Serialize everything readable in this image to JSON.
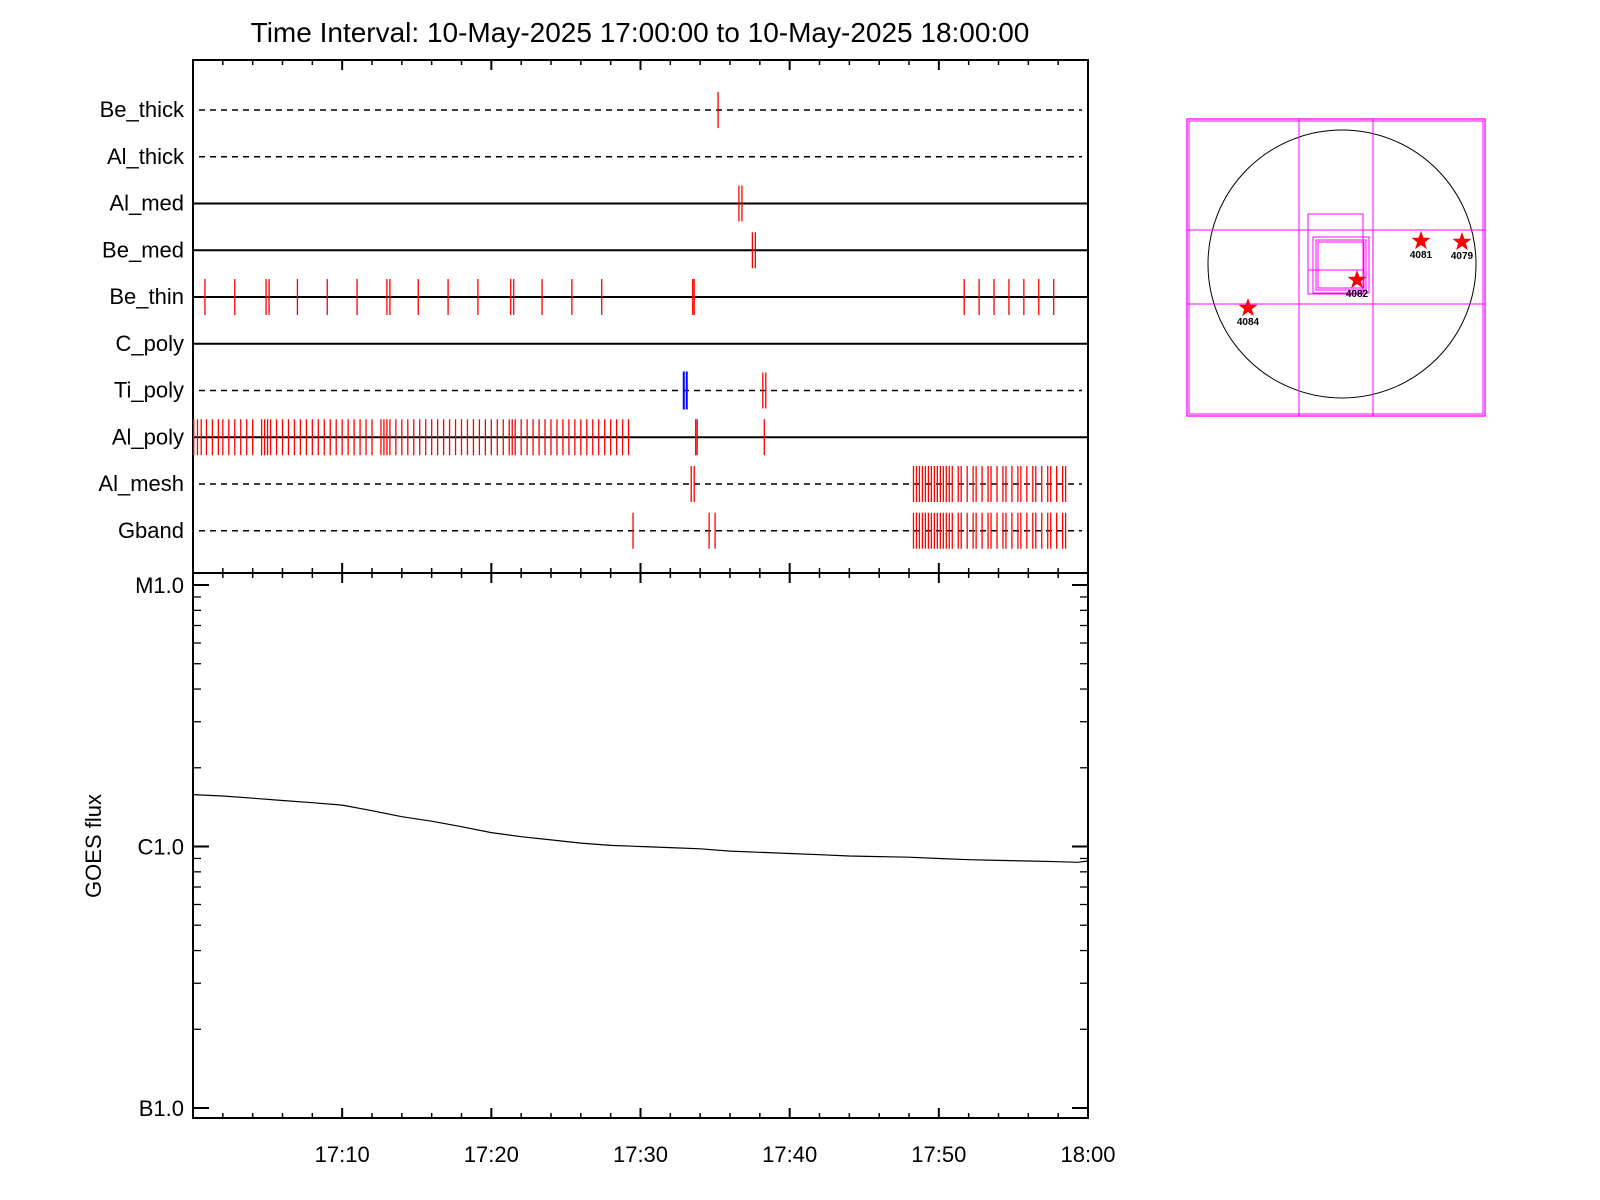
{
  "chart_data": [
    {
      "type": "timeline",
      "title": "Time Interval: 10-May-2025 17:00:00 to 10-May-2025 18:00:00",
      "x_range": [
        "17:00",
        "18:00"
      ],
      "rows": [
        {
          "label": "Be_thick",
          "line": "dashed",
          "red": [
            35.2
          ],
          "blue": []
        },
        {
          "label": "Al_thick",
          "line": "dashed",
          "red": [],
          "blue": []
        },
        {
          "label": "Al_med",
          "line": "solid",
          "red": [
            36.6,
            36.8
          ],
          "blue": []
        },
        {
          "label": "Be_med",
          "line": "solid",
          "red": [
            37.5,
            37.7
          ],
          "blue": []
        },
        {
          "label": "Be_thin",
          "line": "solid",
          "red": [
            0.8,
            2.8,
            4.9,
            5.1,
            7.0,
            9.0,
            11.0,
            13.0,
            13.2,
            15.1,
            17.1,
            19.1,
            21.3,
            21.5,
            23.4,
            25.4,
            27.4,
            33.5,
            33.6,
            51.7,
            52.7,
            53.7,
            54.7,
            55.7,
            56.7,
            57.7
          ],
          "blue": []
        },
        {
          "label": "C_poly",
          "line": "solid",
          "red": [],
          "blue": []
        },
        {
          "label": "Ti_poly",
          "line": "dashed",
          "red": [
            38.2,
            38.4
          ],
          "blue": [
            32.9,
            33.1
          ]
        },
        {
          "label": "Al_poly",
          "line": "solid",
          "red": [
            0.05,
            0.3,
            0.55,
            0.9,
            1.3,
            1.7,
            2.0,
            2.4,
            2.8,
            3.2,
            3.6,
            4.0,
            4.6,
            4.8,
            5.0,
            5.2,
            5.6,
            6.0,
            6.4,
            6.8,
            7.2,
            7.6,
            8.0,
            8.4,
            8.8,
            9.2,
            9.6,
            10.0,
            10.4,
            10.8,
            11.2,
            11.6,
            12.0,
            12.6,
            12.8,
            13.0,
            13.2,
            13.6,
            14.0,
            14.4,
            14.8,
            15.2,
            15.6,
            16.0,
            16.4,
            16.8,
            17.2,
            17.6,
            18.0,
            18.4,
            18.8,
            19.2,
            19.6,
            20.0,
            20.4,
            20.8,
            21.2,
            21.4,
            21.6,
            22.0,
            22.4,
            22.8,
            23.2,
            23.6,
            24.0,
            24.4,
            24.8,
            25.2,
            25.6,
            26.0,
            26.4,
            26.8,
            27.2,
            27.6,
            28.0,
            28.4,
            28.8,
            29.2,
            33.7,
            33.8,
            38.3
          ],
          "blue": []
        },
        {
          "label": "Al_mesh",
          "line": "dashed",
          "red": [
            33.4,
            33.6,
            48.3,
            48.5,
            48.7,
            48.9,
            49.1,
            49.3,
            49.5,
            49.7,
            49.9,
            50.1,
            50.3,
            50.5,
            50.7,
            50.9,
            51.3,
            51.5,
            51.9,
            52.3,
            52.5,
            52.9,
            53.3,
            53.5,
            53.9,
            54.3,
            54.5,
            54.9,
            55.3,
            55.5,
            55.9,
            56.3,
            56.5,
            56.9,
            57.3,
            57.5,
            57.9,
            58.3,
            58.5
          ],
          "blue": []
        },
        {
          "label": "Gband",
          "line": "dashed",
          "red": [
            29.5,
            34.6,
            35.0,
            48.3,
            48.5,
            48.7,
            48.9,
            49.1,
            49.3,
            49.5,
            49.7,
            49.9,
            50.1,
            50.3,
            50.5,
            50.7,
            50.9,
            51.3,
            51.5,
            51.9,
            52.3,
            52.5,
            52.9,
            53.3,
            53.5,
            53.9,
            54.3,
            54.5,
            54.9,
            55.3,
            55.5,
            55.9,
            56.3,
            56.5,
            56.9,
            57.3,
            57.5,
            57.9,
            58.3,
            58.5
          ],
          "blue": []
        }
      ]
    },
    {
      "type": "line",
      "ylabel": "GOES flux",
      "yscale": "log",
      "ylim": [
        1e-07,
        1e-05
      ],
      "y_ticks": [
        {
          "label": "M1.0",
          "value": 1e-05
        },
        {
          "label": "C1.0",
          "value": 1e-06
        },
        {
          "label": "B1.0",
          "value": 1e-07
        }
      ],
      "x_ticks": [
        "17:10",
        "17:20",
        "17:30",
        "17:40",
        "17:50",
        "18:00"
      ],
      "series": [
        {
          "x": [
            0,
            2,
            4,
            6,
            8,
            10,
            12,
            14,
            16,
            18,
            20,
            22,
            24,
            26,
            28,
            30,
            32,
            34,
            36,
            38,
            40,
            42,
            44,
            46,
            48,
            50,
            52,
            54,
            56,
            58,
            59.3,
            60
          ],
          "y": [
            1.58e-06,
            1.56e-06,
            1.53e-06,
            1.5e-06,
            1.47e-06,
            1.44e-06,
            1.37e-06,
            1.3e-06,
            1.25e-06,
            1.19e-06,
            1.13e-06,
            1.09e-06,
            1.06e-06,
            1.03e-06,
            1.01e-06,
            1e-06,
            9.9e-07,
            9.8e-07,
            9.6e-07,
            9.5e-07,
            9.4e-07,
            9.3e-07,
            9.2e-07,
            9.15e-07,
            9.1e-07,
            9e-07,
            8.9e-07,
            8.85e-07,
            8.8e-07,
            8.75e-07,
            8.7e-07,
            8.8e-07
          ]
        }
      ]
    },
    {
      "type": "map",
      "regions": [
        {
          "label": "4084"
        },
        {
          "label": "4082"
        },
        {
          "label": "4081"
        },
        {
          "label": "4079"
        }
      ],
      "colors": {
        "fov_boxes": "#ff00ff",
        "markers": "#ff0000",
        "disk": "#000000"
      }
    }
  ],
  "colors": {
    "red_marks": "#ff0000",
    "blue_marks": "#0000ff"
  }
}
